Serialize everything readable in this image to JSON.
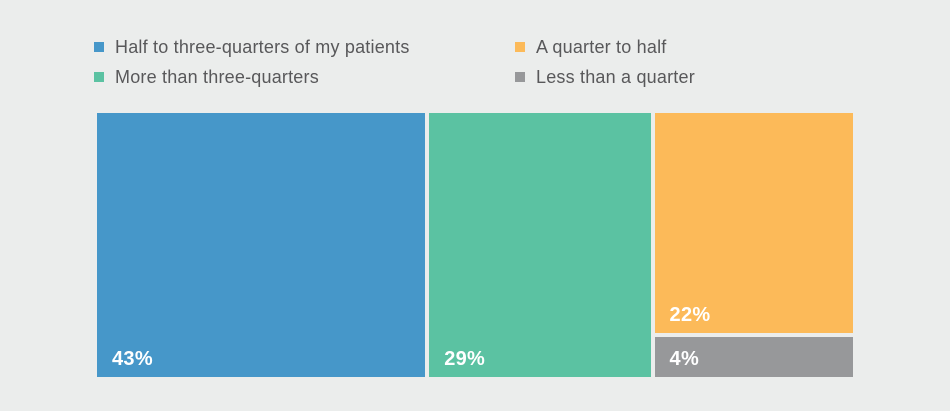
{
  "canvas": {
    "background": "#ebedec"
  },
  "legend": {
    "position": "top",
    "text_color": "#58585a",
    "items": [
      {
        "label": "Half to three-quarters of my patients",
        "color": "#4697c9"
      },
      {
        "label": "A quarter to half",
        "color": "#fcba59"
      },
      {
        "label": "More than three-quarters",
        "color": "#5bc2a2"
      },
      {
        "label": "Less than a quarter",
        "color": "#97989a"
      }
    ]
  },
  "chart_data": {
    "type": "treemap",
    "title": "",
    "categories": [
      "Half to three-quarters of my patients",
      "More than three-quarters",
      "A quarter to half",
      "Less than a quarter"
    ],
    "values": [
      43,
      29,
      22,
      4
    ],
    "labels": [
      "43%",
      "29%",
      "22%",
      "4%"
    ],
    "colors": [
      "#4697c9",
      "#5bc2a2",
      "#fcba59",
      "#97989a"
    ],
    "value_label_color": "#ffffff",
    "legend_position": "top",
    "layout": "slice-and-dice treemap: columns proportional to 43 / 29 / (22+4); third column split vertically into 22 over 4 with small gaps"
  }
}
